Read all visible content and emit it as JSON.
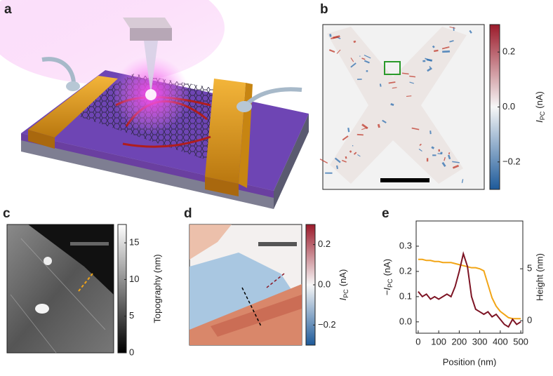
{
  "panels": {
    "a": {
      "label": "a"
    },
    "b": {
      "label": "b",
      "colorbar": {
        "label": {
          "symbol": "I",
          "subscript": "PC",
          "unit": "(nA)"
        },
        "lim": [
          -0.3,
          0.3
        ],
        "ticks": [
          0.2,
          {
            "value": 0,
            "label": "0.0"
          },
          {
            "value": -0.2,
            "label": "−0.2"
          }
        ],
        "colors": [
          "#1d5a9a",
          "#f7f7f7",
          "#9b1a2a"
        ]
      }
    },
    "c": {
      "label": "c",
      "colorbar": {
        "label": {
          "text": "Topography (nm)"
        },
        "lim": [
          0,
          17.5
        ],
        "ticks": [
          0,
          5,
          10,
          15
        ],
        "colors": [
          "#000000",
          "#ffffff"
        ]
      }
    },
    "d": {
      "label": "d",
      "colorbar": {
        "label": {
          "symbol": "I",
          "subscript": "PC",
          "unit": "(nA)"
        },
        "lim": [
          -0.3,
          0.3
        ],
        "ticks": [
          0.2,
          {
            "value": 0,
            "label": "0.0"
          },
          {
            "value": -0.2,
            "label": "−0.2"
          }
        ],
        "colors": [
          "#1d5a9a",
          "#f7f7f7",
          "#9b1a2a"
        ]
      }
    }
  },
  "chart_data": {
    "type": "line",
    "panel_label": "e",
    "x_label": "Position (nm)",
    "y_label": {
      "prefix": "−",
      "symbol": "I",
      "subscript": "PC",
      "unit": "(nA)"
    },
    "y2_label": "Height (nm)",
    "x": [
      0,
      20,
      40,
      60,
      80,
      100,
      120,
      140,
      160,
      180,
      200,
      220,
      240,
      260,
      280,
      300,
      320,
      340,
      360,
      380,
      400,
      420,
      440,
      460,
      480,
      500
    ],
    "series": [
      {
        "color": "#7d1424",
        "values": [
          0.12,
          0.1,
          0.11,
          0.09,
          0.1,
          0.09,
          0.1,
          0.11,
          0.1,
          0.14,
          0.2,
          0.27,
          0.22,
          0.1,
          0.05,
          0.04,
          0.03,
          0.04,
          0.02,
          0.03,
          0.01,
          -0.01,
          -0.02,
          0.01,
          -0.01,
          0.0
        ]
      },
      {
        "color": "#f2a516",
        "axis": "y2",
        "values": [
          5.9,
          5.9,
          5.8,
          5.8,
          5.7,
          5.7,
          5.6,
          5.6,
          5.6,
          5.5,
          5.4,
          5.3,
          5.2,
          5.1,
          5.1,
          5.0,
          4.8,
          3.5,
          2.2,
          1.4,
          0.9,
          0.6,
          0.3,
          0.2,
          0.2,
          0.2
        ]
      }
    ],
    "xlim": [
      -10,
      510
    ],
    "xticks": [
      0,
      100,
      200,
      300,
      400,
      500
    ],
    "ylim": [
      -0.045,
      0.4
    ],
    "yticks": [
      {
        "value": 0,
        "label": "0.0"
      },
      0.1,
      0.2,
      0.3
    ],
    "y2lim": [
      -1.2,
      9.6
    ],
    "y2ticks": [
      0,
      5
    ]
  }
}
